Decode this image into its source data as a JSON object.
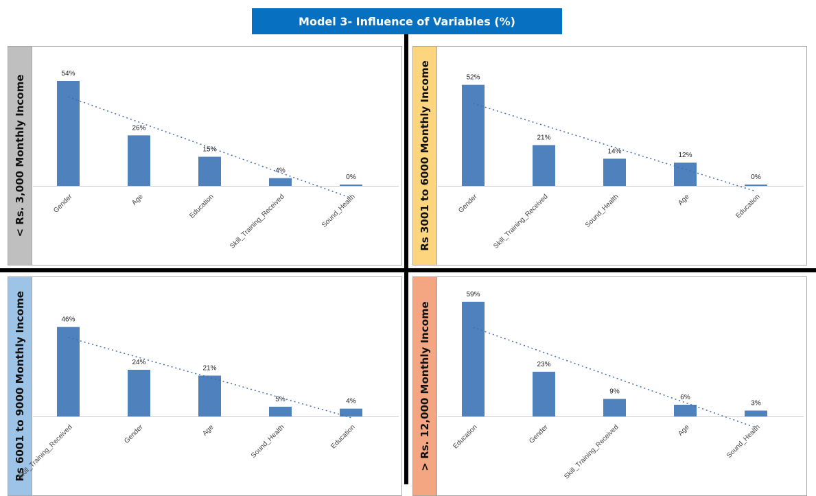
{
  "title": "Model 3- Influence of Variables (%)",
  "colors": {
    "bar": "#4f81bd",
    "trend": "#3a6db3",
    "title_bg": "#0870c1"
  },
  "chart_data": [
    {
      "type": "bar",
      "panel_label": "< Rs. 3,000 Monthly Income",
      "label_color": "#bfbfbf",
      "categories": [
        "Gender",
        "Age",
        "Education",
        "Skill_Training_Received",
        "Sound_Health"
      ],
      "values": [
        54,
        26,
        15,
        4,
        0
      ],
      "value_labels": [
        "54%",
        "26%",
        "15%",
        "4%",
        "0%"
      ],
      "trendline": "linear",
      "ylim": [
        0,
        60
      ]
    },
    {
      "type": "bar",
      "panel_label": "Rs 3001 to 6000 Monthly Income",
      "label_color": "#fdd57e",
      "categories": [
        "Gender",
        "Skill_Training_Received",
        "Sound_Health",
        "Age",
        "Education"
      ],
      "values": [
        52,
        21,
        14,
        12,
        0
      ],
      "value_labels": [
        "52%",
        "21%",
        "14%",
        "12%",
        "0%"
      ],
      "trendline": "linear",
      "ylim": [
        0,
        60
      ]
    },
    {
      "type": "bar",
      "panel_label": "Rs 6001 to 9000 Monthly Income",
      "label_color": "#9dc3e6",
      "categories": [
        "Skill_Training_Received",
        "Gender",
        "Age",
        "Sound_Health",
        "Education"
      ],
      "values": [
        46,
        24,
        21,
        5,
        4
      ],
      "value_labels": [
        "46%",
        "24%",
        "21%",
        "5%",
        "4%"
      ],
      "trendline": "linear",
      "ylim": [
        0,
        60
      ]
    },
    {
      "type": "bar",
      "panel_label": "> Rs. 12,000 Monthly Income",
      "label_color": "#f4a582",
      "categories": [
        "Education",
        "Gender",
        "Skill_Training_Received",
        "Age",
        "Sound_Health"
      ],
      "values": [
        59,
        23,
        9,
        6,
        3
      ],
      "value_labels": [
        "59%",
        "23%",
        "9%",
        "6%",
        "3%"
      ],
      "trendline": "linear",
      "ylim": [
        0,
        60
      ]
    }
  ]
}
